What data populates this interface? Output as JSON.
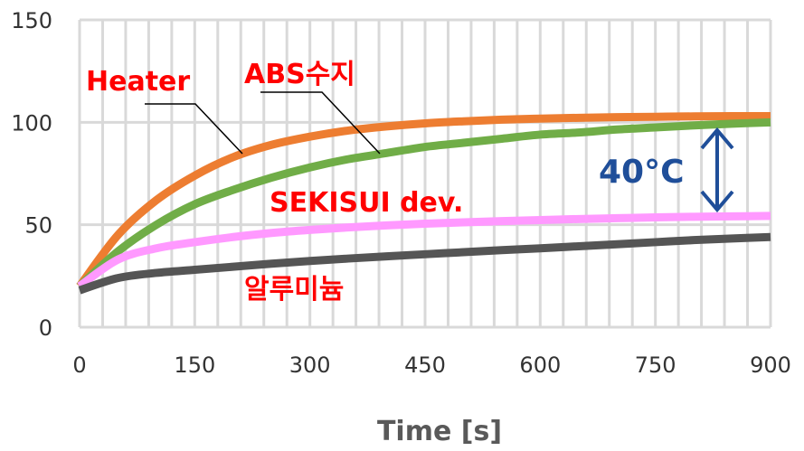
{
  "chart_data": {
    "type": "line",
    "title": "",
    "xlabel": "Time [s]",
    "ylabel": "",
    "xlim": [
      0,
      900
    ],
    "ylim": [
      0,
      150
    ],
    "x_ticks": [
      0,
      150,
      300,
      450,
      600,
      750,
      900
    ],
    "y_ticks": [
      0,
      50,
      100,
      150
    ],
    "x_minor_grid_step": 30,
    "grid": true,
    "x": [
      0,
      50,
      100,
      150,
      200,
      250,
      300,
      350,
      400,
      450,
      500,
      550,
      600,
      650,
      700,
      750,
      800,
      850,
      900
    ],
    "series": [
      {
        "name": "Heater",
        "color": "#ED7D31",
        "values": [
          20,
          45,
          62,
          74,
          83,
          89,
          93,
          96,
          98,
          99.5,
          100.5,
          101.3,
          101.8,
          102.2,
          102.5,
          102.7,
          102.9,
          103,
          103
        ]
      },
      {
        "name": "ABS수지",
        "color": "#70AD47",
        "values": [
          20,
          37,
          50,
          60,
          67,
          73,
          78,
          82,
          85,
          88,
          90,
          92,
          94,
          95,
          96.5,
          97.5,
          98.5,
          99.3,
          100
        ]
      },
      {
        "name": "SEKISUI dev.",
        "color": "#FF99FF",
        "values": [
          20,
          33,
          38.5,
          41.5,
          44,
          46,
          47.5,
          48.7,
          49.7,
          50.5,
          51.2,
          51.8,
          52.3,
          52.8,
          53.2,
          53.6,
          53.9,
          54.1,
          54.3
        ]
      },
      {
        "name": "알루미늄",
        "color": "#555555",
        "values": [
          18,
          24,
          26.5,
          28,
          29.5,
          31,
          32.3,
          33.5,
          34.6,
          35.6,
          36.6,
          37.6,
          38.5,
          39.5,
          40.5,
          41.5,
          42.5,
          43.3,
          44
        ]
      }
    ],
    "annotations": {
      "heater": "Heater",
      "abs": "ABS수지",
      "sekisui": "SEKISUI dev.",
      "aluminum": "알루미늄",
      "difference": "40°C",
      "difference_color": "#1F4E99"
    }
  }
}
